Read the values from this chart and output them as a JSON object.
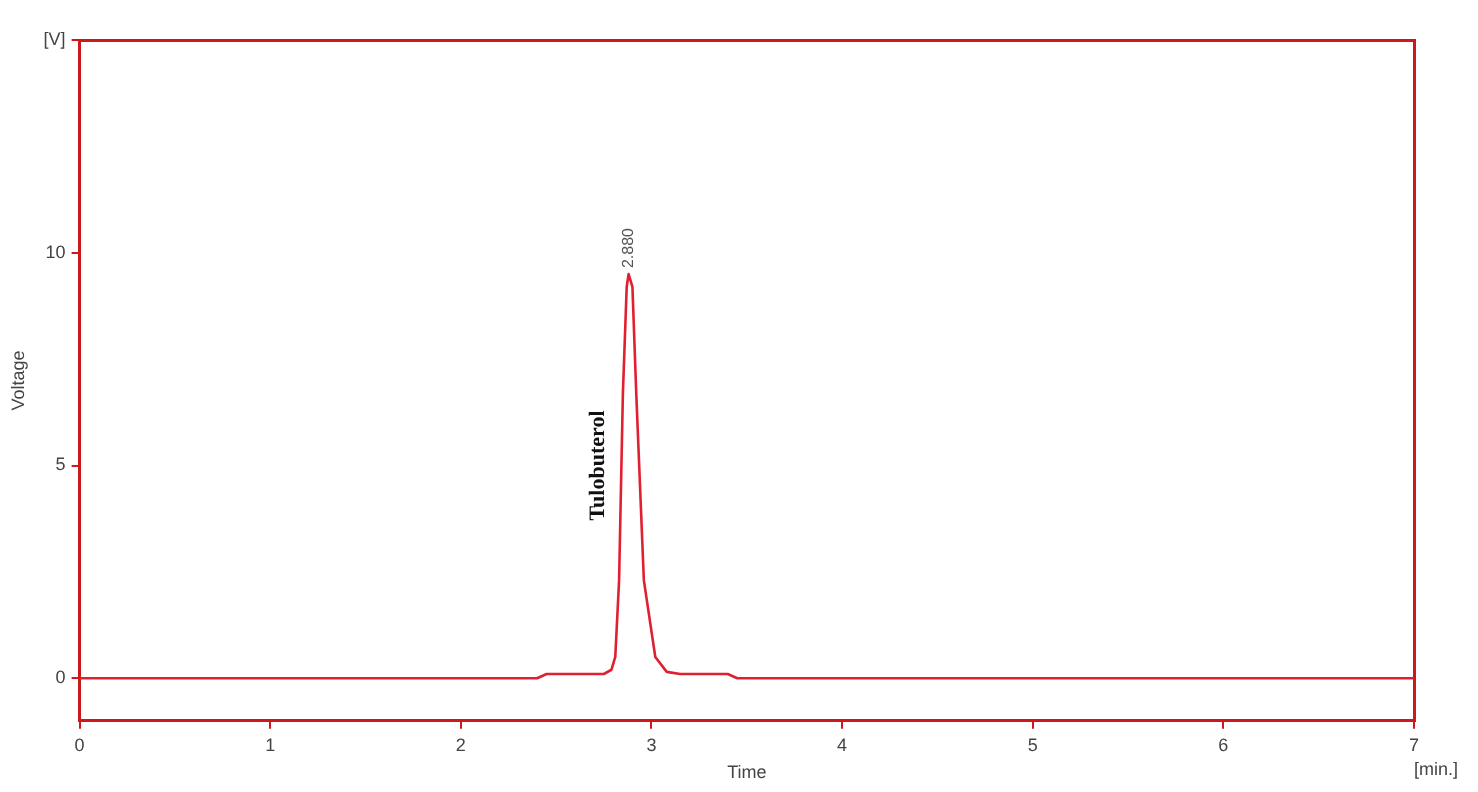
{
  "chart_data": {
    "type": "line",
    "xlabel": "Time",
    "ylabel": "Voltage",
    "xlim": [
      0,
      7
    ],
    "xticks": [
      0,
      1,
      2,
      3,
      4,
      5,
      6,
      7
    ],
    "ylim": [
      -1,
      15
    ],
    "yticks": [
      0,
      5,
      10,
      {
        "value": 15,
        "label": "[V]"
      }
    ],
    "grid": false,
    "legend": false,
    "marker": "none",
    "line_style": "solid",
    "series": [
      {
        "color": "#e02030",
        "x": [
          0,
          2.4,
          2.45,
          2.75,
          2.79,
          2.81,
          2.83,
          2.85,
          2.87,
          2.88,
          2.9,
          2.92,
          2.96,
          3.02,
          3.08,
          3.15,
          3.4,
          3.45,
          7
        ],
        "values": [
          0,
          0,
          0.1,
          0.1,
          0.2,
          0.5,
          2.3,
          6.7,
          9.2,
          9.5,
          9.2,
          6.7,
          2.3,
          0.5,
          0.15,
          0.1,
          0.1,
          0,
          0
        ]
      }
    ],
    "annotations": [
      {
        "text": "2.880",
        "x": 2.88,
        "y": 9.5
      },
      {
        "text": "Tulobuterol",
        "x": 2.84,
        "y": 5
      },
      "[min.]"
    ]
  }
}
